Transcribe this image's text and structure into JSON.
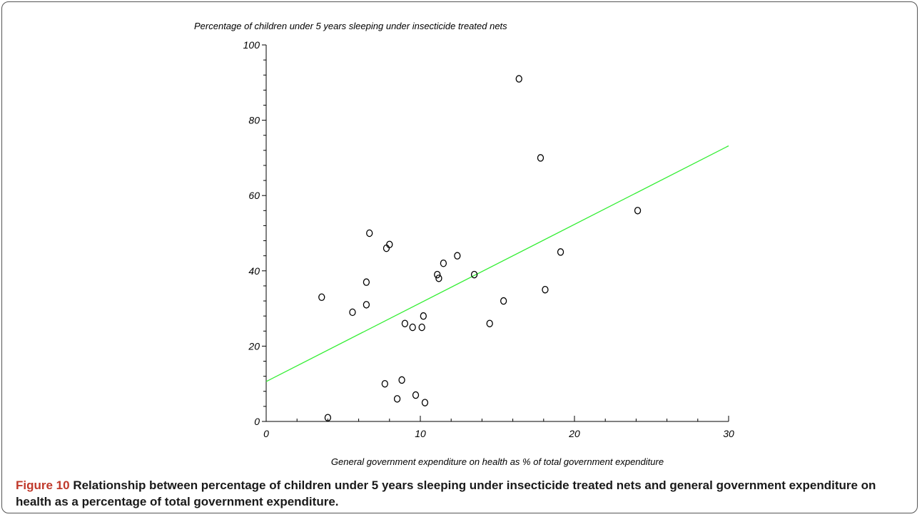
{
  "chart_data": {
    "type": "scatter",
    "title": "",
    "ylabel": "Percentage of children under 5 years sleeping under insecticide treated nets",
    "xlabel": "General government expenditure on health as % of total government expenditure",
    "xlim": [
      0,
      30
    ],
    "ylim": [
      0,
      100
    ],
    "x_ticks": [
      0,
      10,
      20,
      30
    ],
    "y_ticks": [
      0,
      20,
      40,
      60,
      80,
      100
    ],
    "grid": false,
    "legend": "none",
    "points": [
      {
        "x": 3.6,
        "y": 33
      },
      {
        "x": 4.0,
        "y": 1
      },
      {
        "x": 5.6,
        "y": 29
      },
      {
        "x": 6.5,
        "y": 37
      },
      {
        "x": 6.5,
        "y": 31
      },
      {
        "x": 6.7,
        "y": 50
      },
      {
        "x": 7.7,
        "y": 10
      },
      {
        "x": 7.8,
        "y": 46
      },
      {
        "x": 8.0,
        "y": 47
      },
      {
        "x": 8.5,
        "y": 6
      },
      {
        "x": 8.8,
        "y": 11
      },
      {
        "x": 9.0,
        "y": 26
      },
      {
        "x": 9.5,
        "y": 25
      },
      {
        "x": 9.7,
        "y": 7
      },
      {
        "x": 10.1,
        "y": 25
      },
      {
        "x": 10.2,
        "y": 28
      },
      {
        "x": 10.3,
        "y": 5
      },
      {
        "x": 11.1,
        "y": 39
      },
      {
        "x": 11.2,
        "y": 38
      },
      {
        "x": 11.5,
        "y": 42
      },
      {
        "x": 12.4,
        "y": 44
      },
      {
        "x": 13.5,
        "y": 39
      },
      {
        "x": 14.5,
        "y": 26
      },
      {
        "x": 15.4,
        "y": 32
      },
      {
        "x": 16.4,
        "y": 91
      },
      {
        "x": 17.8,
        "y": 70
      },
      {
        "x": 18.1,
        "y": 35
      },
      {
        "x": 19.1,
        "y": 45
      },
      {
        "x": 24.1,
        "y": 56
      }
    ],
    "trendline": {
      "x": [
        0,
        30
      ],
      "y": [
        10.6,
        73.2
      ],
      "color": "#33ee33"
    },
    "marker_color": "#000000"
  },
  "caption": {
    "label": "Figure 10",
    "text": "Relationship between percentage of children under 5 years sleeping under insecticide treated nets and general government expenditure on health as a percentage of total government expenditure."
  }
}
